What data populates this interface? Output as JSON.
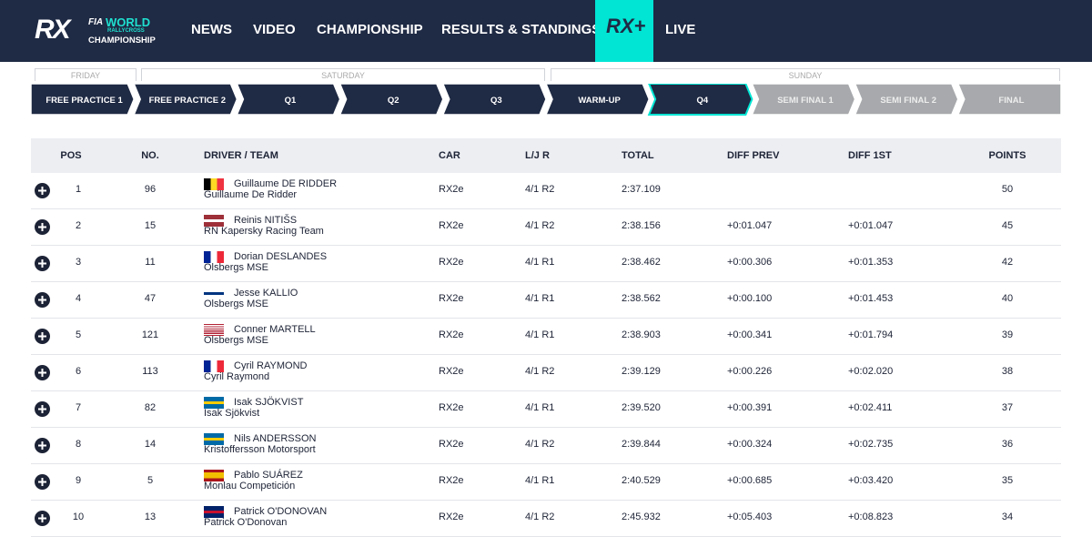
{
  "nav": {
    "logo": {
      "mark": "RX",
      "fia": "FIA",
      "world": "WORLD",
      "rallycross": "RALLYCROSS",
      "championship": "CHAMPIONSHIP"
    },
    "items": [
      "NEWS",
      "VIDEO",
      "CHAMPIONSHIP",
      "RESULTS & STANDINGS"
    ],
    "plus": "RX+",
    "live": "LIVE"
  },
  "days": [
    "FRIDAY",
    "SATURDAY",
    "SUNDAY"
  ],
  "sessions": [
    "FREE PRACTICE 1",
    "FREE PRACTICE 2",
    "Q1",
    "Q2",
    "Q3",
    "WARM-UP",
    "Q4",
    "SEMI FINAL 1",
    "SEMI FINAL 2",
    "FINAL"
  ],
  "table": {
    "headers": [
      "POS",
      "NO.",
      "DRIVER / TEAM",
      "CAR",
      "L/J R",
      "TOTAL",
      "DIFF PREV",
      "DIFF 1ST",
      "POINTS"
    ],
    "rows": [
      [
        1,
        96,
        "Guillaume DE RIDDER",
        "Guillaume De Ridder",
        "RX2e",
        "4/1 R2",
        "2:37.109",
        null,
        null,
        50
      ],
      [
        2,
        15,
        "Reinis NITIŠS",
        "RN Kapersky Racing Team",
        "RX2e",
        "4/1 R2",
        "2:38.156",
        "+0:01.047",
        "+0:01.047",
        45
      ],
      [
        3,
        11,
        "Dorian DESLANDES",
        "Olsbergs MSE",
        "RX2e",
        "4/1 R1",
        "2:38.462",
        "+0:00.306",
        "+0:01.353",
        42
      ],
      [
        4,
        47,
        "Jesse KALLIO",
        "Olsbergs MSE",
        "RX2e",
        "4/1 R1",
        "2:38.562",
        "+0:00.100",
        "+0:01.453",
        40
      ],
      [
        5,
        121,
        "Conner MARTELL",
        "Olsbergs MSE",
        "RX2e",
        "4/1 R1",
        "2:38.903",
        "+0:00.341",
        "+0:01.794",
        39
      ],
      [
        6,
        113,
        "Cyril RAYMOND",
        "Cyril Raymond",
        "RX2e",
        "4/1 R2",
        "2:39.129",
        "+0:00.226",
        "+0:02.020",
        38
      ],
      [
        7,
        82,
        "Isak SJÖKVIST",
        "Isak Sjökvist",
        "RX2e",
        "4/1 R1",
        "2:39.520",
        "+0:00.391",
        "+0:02.411",
        37
      ],
      [
        8,
        14,
        "Nils ANDERSSON",
        "Kristoffersson Motorsport",
        "RX2e",
        "4/1 R2",
        "2:39.844",
        "+0:00.324",
        "+0:02.735",
        36
      ],
      [
        9,
        5,
        "Pablo SUÁREZ",
        "Monlau Competición",
        "RX2e",
        "4/1 R1",
        "2:40.529",
        "+0:00.685",
        "+0:03.420",
        35
      ],
      [
        10,
        13,
        "Patrick O'DONOVAN",
        "Patrick O'Donovan",
        "RX2e",
        "4/1 R2",
        "2:45.932",
        "+0:05.403",
        "+0:08.823",
        34
      ]
    ]
  }
}
